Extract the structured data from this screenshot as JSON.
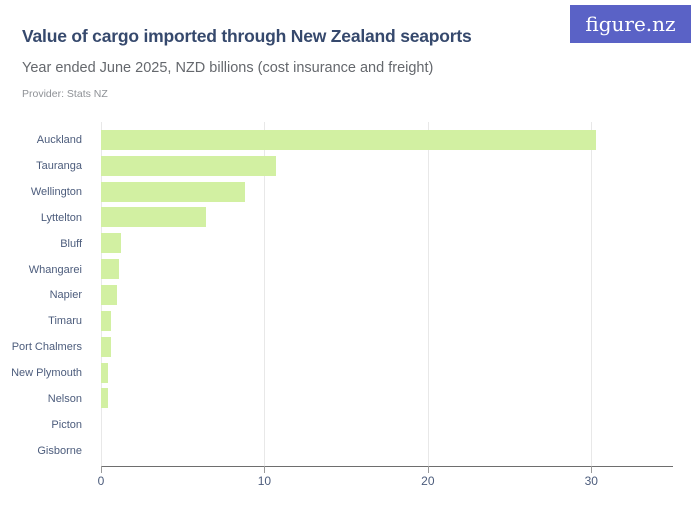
{
  "header": {
    "title": "Value of cargo imported through New Zealand seaports",
    "subtitle": "Year ended June 2025, NZD billions (cost insurance and freight)",
    "provider": "Provider: Stats NZ",
    "logo_text": "figure.nz"
  },
  "colors": {
    "bar": "#d2f0a2",
    "title": "#36496d",
    "subtitle": "#65686d",
    "provider": "#8e9196",
    "axis_label": "#4c5c7c",
    "logo_bg": "#5a62c6",
    "gridline": "#e8e8e8",
    "axis_line": "#6e6e6e"
  },
  "chart_data": {
    "type": "bar",
    "orientation": "horizontal",
    "title": "Value of cargo imported through New Zealand seaports",
    "subtitle": "Year ended June 2025, NZD billions (cost insurance and freight)",
    "source": "Provider: Stats NZ",
    "categories": [
      "Auckland",
      "Tauranga",
      "Wellington",
      "Lyttelton",
      "Bluff",
      "Whangarei",
      "Napier",
      "Timaru",
      "Port Chalmers",
      "New Plymouth",
      "Nelson",
      "Picton",
      "Gisborne"
    ],
    "values": [
      30.3,
      10.7,
      8.8,
      6.4,
      1.2,
      1.1,
      1.0,
      0.6,
      0.6,
      0.4,
      0.4,
      0,
      0
    ],
    "xlabel": "",
    "ylabel": "",
    "xlim": [
      0,
      35
    ],
    "xticks": [
      0,
      10,
      20,
      30
    ],
    "grid": true,
    "legend": false,
    "bar_color": "#d2f0a2"
  }
}
